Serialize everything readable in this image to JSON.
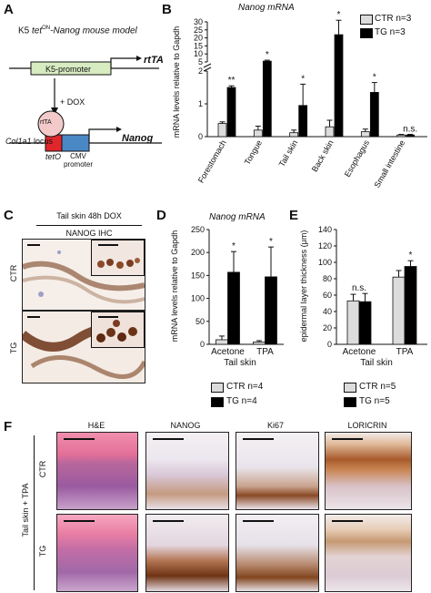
{
  "panels": {
    "a": {
      "letter": "A",
      "title_prefix": "K5 ",
      "title_tet": "tet",
      "title_sup": "ON",
      "title_rest": "-Nanog mouse model",
      "k5_promoter": "K5-promoter",
      "rtta": "rtTA",
      "dox": "+ DOX",
      "col1a1": "Col1a1",
      "locus": " locus",
      "tet_o": "tetO",
      "rtta_protein": "rtTA",
      "cmv": "CMV\npromoter",
      "nanog": "Nanog",
      "colors": {
        "k5_box": "#d7ecc1",
        "rtta_circle": "#f3c9c9",
        "teto": "#e0262b",
        "cmv": "#4a87c5"
      }
    },
    "b": {
      "letter": "B",
      "title": "Nanog mRNA",
      "ylabel": "mRNA levels relative to Gapdh",
      "legend": [
        "CTR n=3",
        "TG n=3"
      ],
      "sig": [
        "**",
        "*",
        "*",
        "*",
        "*",
        "n.s."
      ]
    },
    "c": {
      "letter": "C",
      "header": "Tail skin 48h DOX",
      "subheader": "NANOG IHC",
      "rows": [
        "CTR",
        "TG"
      ]
    },
    "d": {
      "letter": "D",
      "title": "Nanog mRNA",
      "ylabel": "mRNA levels relative to Gapdh",
      "xgroup": "Tail skin",
      "legend": [
        "CTR n=4",
        "TG n=4"
      ],
      "sig": [
        "*",
        "*"
      ]
    },
    "e": {
      "letter": "E",
      "ylabel": "epidermal layer thickness (μm)",
      "xgroup": "Tail skin",
      "legend": [
        "CTR n=5",
        "TG n=5"
      ],
      "sig": [
        "n.s.",
        "*"
      ]
    },
    "f": {
      "letter": "F",
      "columns": [
        "H&E",
        "NANOG",
        "Ki67",
        "LORICRIN"
      ],
      "rows": [
        "CTR",
        "TG"
      ],
      "side_label": "Tail skin + TPA"
    }
  },
  "chart_data": [
    {
      "type": "bar",
      "panel": "B",
      "title": "Nanog mRNA",
      "ylabel": "mRNA levels relative to Gapdh",
      "categories": [
        "Forestomach",
        "Tongue",
        "Tail skin",
        "Back skin",
        "Esophagus",
        "Small intestine"
      ],
      "series": [
        {
          "name": "CTR n=3",
          "color": "#dcdcdc",
          "values": [
            0.4,
            0.2,
            0.12,
            0.3,
            0.15,
            0.05
          ],
          "errors": [
            0.05,
            0.12,
            0.08,
            0.2,
            0.08,
            0.02
          ]
        },
        {
          "name": "TG n=3",
          "color": "#000000",
          "values": [
            1.5,
            5.5,
            0.95,
            22,
            1.35,
            0.05
          ],
          "errors": [
            0.05,
            0.6,
            0.65,
            9,
            0.3,
            0.02
          ]
        }
      ],
      "axis_break": {
        "lower_ylim": [
          0,
          2
        ],
        "lower_ticks": [
          0,
          1,
          2
        ],
        "upper_ylim": [
          5,
          30
        ],
        "upper_ticks": [
          5,
          10,
          15,
          20,
          25,
          30
        ]
      }
    },
    {
      "type": "bar",
      "panel": "D",
      "title": "Nanog mRNA",
      "ylabel": "mRNA levels relative to Gapdh",
      "categories": [
        "Acetone",
        "TPA"
      ],
      "series": [
        {
          "name": "CTR n=4",
          "color": "#dcdcdc",
          "values": [
            10,
            5
          ],
          "errors": [
            8,
            3
          ]
        },
        {
          "name": "TG n=4",
          "color": "#000000",
          "values": [
            157,
            147
          ],
          "errors": [
            45,
            65
          ]
        }
      ],
      "ylim": [
        0,
        250
      ],
      "yticks": [
        0,
        50,
        100,
        150,
        200,
        250
      ]
    },
    {
      "type": "bar",
      "panel": "E",
      "ylabel": "epidermal layer thickness (μm)",
      "categories": [
        "Acetone",
        "TPA"
      ],
      "series": [
        {
          "name": "CTR n=5",
          "color": "#dcdcdc",
          "values": [
            53,
            82
          ],
          "errors": [
            8,
            8
          ]
        },
        {
          "name": "TG n=5",
          "color": "#000000",
          "values": [
            52,
            95
          ],
          "errors": [
            10,
            7
          ]
        }
      ],
      "ylim": [
        0,
        140
      ],
      "yticks": [
        0,
        20,
        40,
        60,
        80,
        100,
        120,
        140
      ]
    }
  ]
}
